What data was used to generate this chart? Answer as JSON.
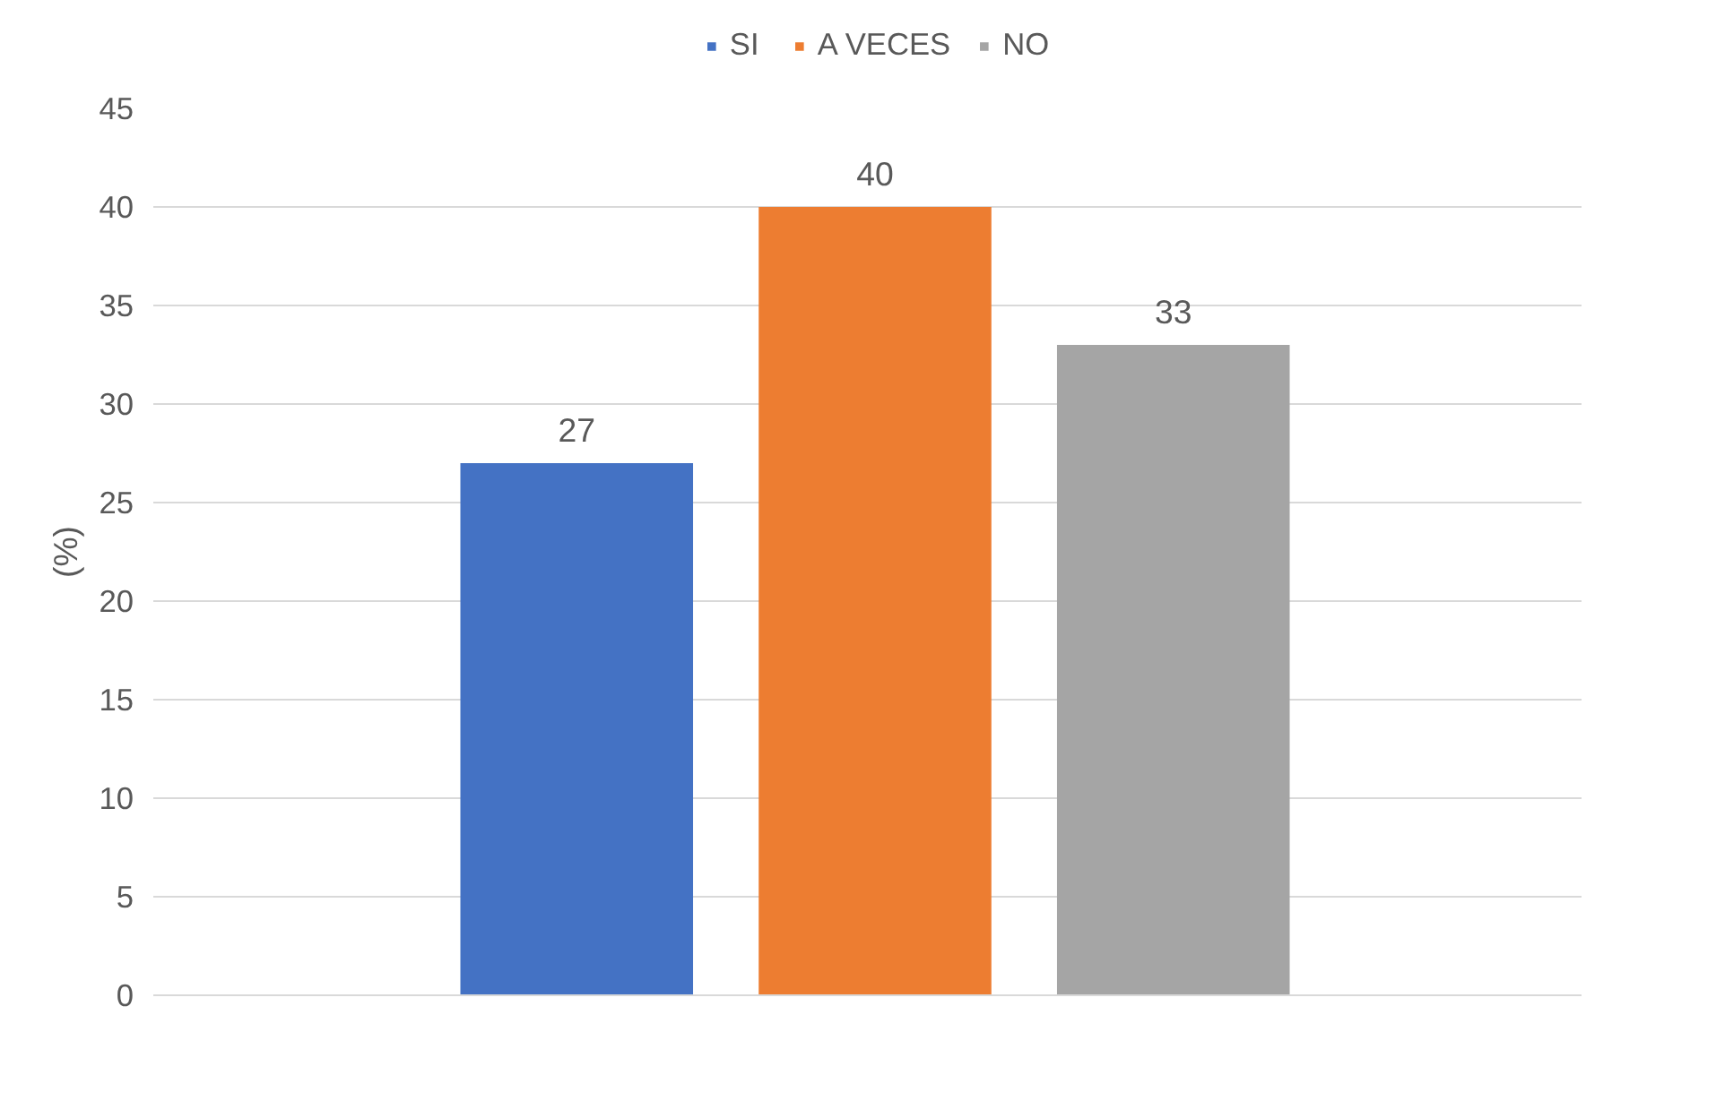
{
  "chart_data": {
    "type": "bar",
    "ylabel": "(%)",
    "categories": [
      null
    ],
    "series": [
      {
        "name": "SI",
        "color": "#4472c4",
        "values": [
          27
        ]
      },
      {
        "name": "A VECES",
        "color": "#ed7d31",
        "values": [
          40
        ]
      },
      {
        "name": "NO",
        "color": "#a5a5a5",
        "values": [
          33
        ]
      }
    ],
    "ylim": [
      0,
      45
    ],
    "yticks": [
      0,
      5,
      10,
      15,
      20,
      25,
      30,
      35,
      40,
      45
    ],
    "grid": "y",
    "legend": "top",
    "data_labels": true
  }
}
